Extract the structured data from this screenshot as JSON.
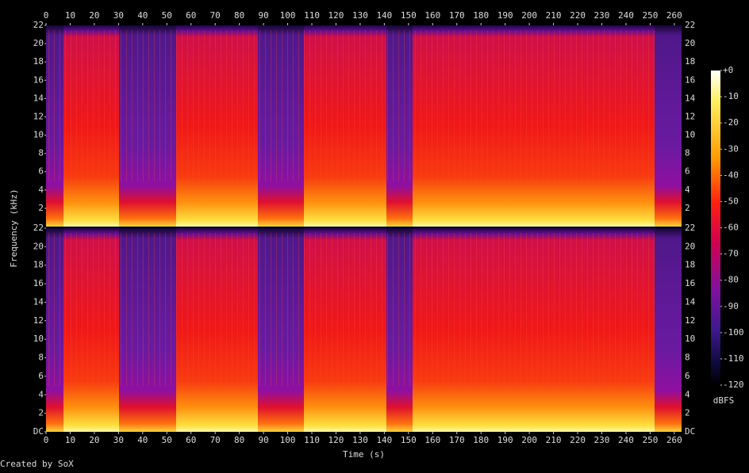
{
  "y_label": "Frequency (kHz)",
  "credit": "Created by SoX",
  "chart_data": [
    {
      "type": "spectrogram",
      "xlim": [
        0,
        263
      ],
      "xticks": [
        0,
        10,
        20,
        30,
        40,
        50,
        60,
        70,
        80,
        90,
        100,
        110,
        120,
        130,
        140,
        150,
        160,
        170,
        180,
        190,
        200,
        210,
        220,
        230,
        240,
        250,
        260
      ],
      "ylim": [
        0,
        22
      ],
      "yticks": [
        2,
        4,
        6,
        8,
        10,
        12,
        14,
        16,
        18,
        20,
        22
      ]
    },
    {
      "type": "spectrogram",
      "x_label": "Time (s)",
      "xlim": [
        0,
        263
      ],
      "xticks": [
        0,
        10,
        20,
        30,
        40,
        50,
        60,
        70,
        80,
        90,
        100,
        110,
        120,
        130,
        140,
        150,
        160,
        170,
        180,
        190,
        200,
        210,
        220,
        230,
        240,
        250,
        260
      ],
      "ylim": [
        0,
        22
      ],
      "yticks": [
        {
          "value": 0,
          "label": "DC"
        },
        2,
        4,
        6,
        8,
        10,
        12,
        14,
        16,
        18,
        20,
        22
      ]
    },
    {
      "type": "colorbar",
      "label": "dBFS",
      "lim": [
        -120,
        0
      ],
      "ticks": [
        {
          "value": 0,
          "label": "+0"
        },
        -10,
        -20,
        -30,
        -40,
        -50,
        -60,
        -70,
        -80,
        -90,
        -100,
        -110,
        -120
      ]
    }
  ]
}
